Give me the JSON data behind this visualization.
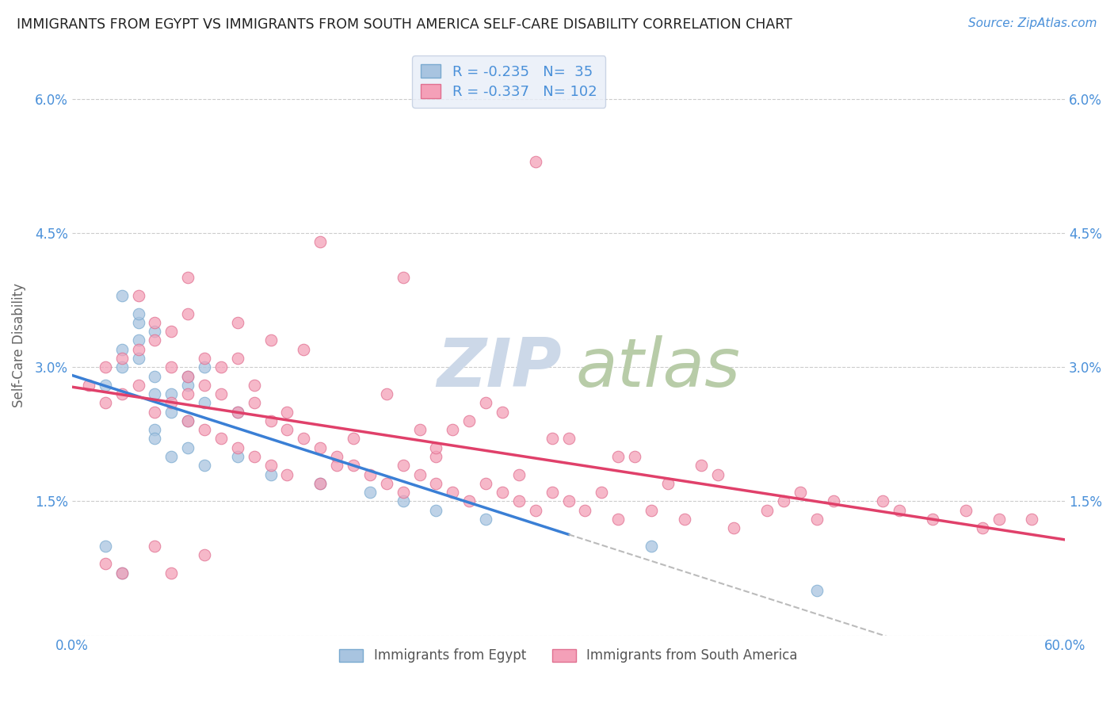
{
  "title": "IMMIGRANTS FROM EGYPT VS IMMIGRANTS FROM SOUTH AMERICA SELF-CARE DISABILITY CORRELATION CHART",
  "source": "Source: ZipAtlas.com",
  "ylabel": "Self-Care Disability",
  "egypt_color": "#a8c4e0",
  "egypt_edge_color": "#7aaad0",
  "south_america_color": "#f4a0b8",
  "south_america_edge_color": "#e07090",
  "egypt_R": -0.235,
  "egypt_N": 35,
  "south_america_R": -0.337,
  "south_america_N": 102,
  "xlim": [
    0.0,
    0.6
  ],
  "ylim": [
    0.0,
    0.065
  ],
  "ytick_vals": [
    0.0,
    0.015,
    0.03,
    0.045,
    0.06
  ],
  "ytick_labels": [
    "",
    "1.5%",
    "3.0%",
    "4.5%",
    "6.0%"
  ],
  "xtick_vals": [
    0.0,
    0.1,
    0.2,
    0.3,
    0.4,
    0.5,
    0.6
  ],
  "xtick_labels": [
    "0.0%",
    "",
    "",
    "",
    "",
    "",
    "60.0%"
  ],
  "egypt_scatter_x": [
    0.02,
    0.03,
    0.04,
    0.05,
    0.06,
    0.07,
    0.08,
    0.03,
    0.04,
    0.05,
    0.06,
    0.07,
    0.04,
    0.05,
    0.03,
    0.04,
    0.05,
    0.06,
    0.07,
    0.08,
    0.05,
    0.1,
    0.12,
    0.15,
    0.18,
    0.2,
    0.22,
    0.25,
    0.02,
    0.03,
    0.07,
    0.08,
    0.1,
    0.35,
    0.45
  ],
  "egypt_scatter_y": [
    0.028,
    0.03,
    0.031,
    0.029,
    0.027,
    0.028,
    0.026,
    0.032,
    0.033,
    0.034,
    0.025,
    0.024,
    0.035,
    0.023,
    0.038,
    0.036,
    0.022,
    0.02,
    0.021,
    0.019,
    0.027,
    0.02,
    0.018,
    0.017,
    0.016,
    0.015,
    0.014,
    0.013,
    0.01,
    0.007,
    0.029,
    0.03,
    0.025,
    0.01,
    0.005
  ],
  "south_america_scatter_x": [
    0.01,
    0.02,
    0.02,
    0.03,
    0.03,
    0.04,
    0.04,
    0.05,
    0.05,
    0.06,
    0.06,
    0.07,
    0.07,
    0.07,
    0.08,
    0.08,
    0.09,
    0.09,
    0.1,
    0.1,
    0.11,
    0.11,
    0.12,
    0.12,
    0.13,
    0.13,
    0.14,
    0.15,
    0.15,
    0.16,
    0.17,
    0.18,
    0.19,
    0.2,
    0.2,
    0.21,
    0.22,
    0.23,
    0.24,
    0.25,
    0.26,
    0.27,
    0.28,
    0.29,
    0.3,
    0.31,
    0.33,
    0.35,
    0.37,
    0.4,
    0.42,
    0.45,
    0.28,
    0.15,
    0.2,
    0.1,
    0.08,
    0.09,
    0.11,
    0.14,
    0.23,
    0.3,
    0.33,
    0.38,
    0.25,
    0.12,
    0.07,
    0.05,
    0.04,
    0.06,
    0.13,
    0.17,
    0.22,
    0.27,
    0.32,
    0.43,
    0.5,
    0.52,
    0.55,
    0.05,
    0.08,
    0.22,
    0.07,
    0.1,
    0.19,
    0.24,
    0.29,
    0.34,
    0.39,
    0.44,
    0.49,
    0.54,
    0.58,
    0.02,
    0.03,
    0.06,
    0.16,
    0.21,
    0.26,
    0.36,
    0.46,
    0.56
  ],
  "south_america_scatter_y": [
    0.028,
    0.03,
    0.026,
    0.031,
    0.027,
    0.032,
    0.028,
    0.033,
    0.025,
    0.034,
    0.026,
    0.029,
    0.027,
    0.024,
    0.028,
    0.023,
    0.027,
    0.022,
    0.025,
    0.021,
    0.026,
    0.02,
    0.024,
    0.019,
    0.023,
    0.018,
    0.022,
    0.021,
    0.017,
    0.02,
    0.019,
    0.018,
    0.017,
    0.019,
    0.016,
    0.018,
    0.017,
    0.016,
    0.015,
    0.017,
    0.016,
    0.015,
    0.014,
    0.016,
    0.015,
    0.014,
    0.013,
    0.014,
    0.013,
    0.012,
    0.014,
    0.013,
    0.053,
    0.044,
    0.04,
    0.035,
    0.031,
    0.03,
    0.028,
    0.032,
    0.023,
    0.022,
    0.02,
    0.019,
    0.026,
    0.033,
    0.036,
    0.035,
    0.038,
    0.03,
    0.025,
    0.022,
    0.02,
    0.018,
    0.016,
    0.015,
    0.014,
    0.013,
    0.012,
    0.01,
    0.009,
    0.021,
    0.04,
    0.031,
    0.027,
    0.024,
    0.022,
    0.02,
    0.018,
    0.016,
    0.015,
    0.014,
    0.013,
    0.008,
    0.007,
    0.007,
    0.019,
    0.023,
    0.025,
    0.017,
    0.015,
    0.013
  ],
  "background_color": "#ffffff",
  "grid_color": "#cccccc",
  "legend_box_color": "#e8eef8",
  "tick_label_color": "#4a90d9",
  "title_color": "#222222",
  "source_color": "#4a90d9",
  "ylabel_color": "#666666",
  "reg_line_egypt_color": "#3a7fd5",
  "reg_line_sa_color": "#e0406a",
  "dash_line_color": "#bbbbbb",
  "legend_text_color": "#4a90d9",
  "bottom_legend_text_color": "#555555",
  "watermark_zip_color": "#ccd8e8",
  "watermark_atlas_color": "#b8cca8"
}
